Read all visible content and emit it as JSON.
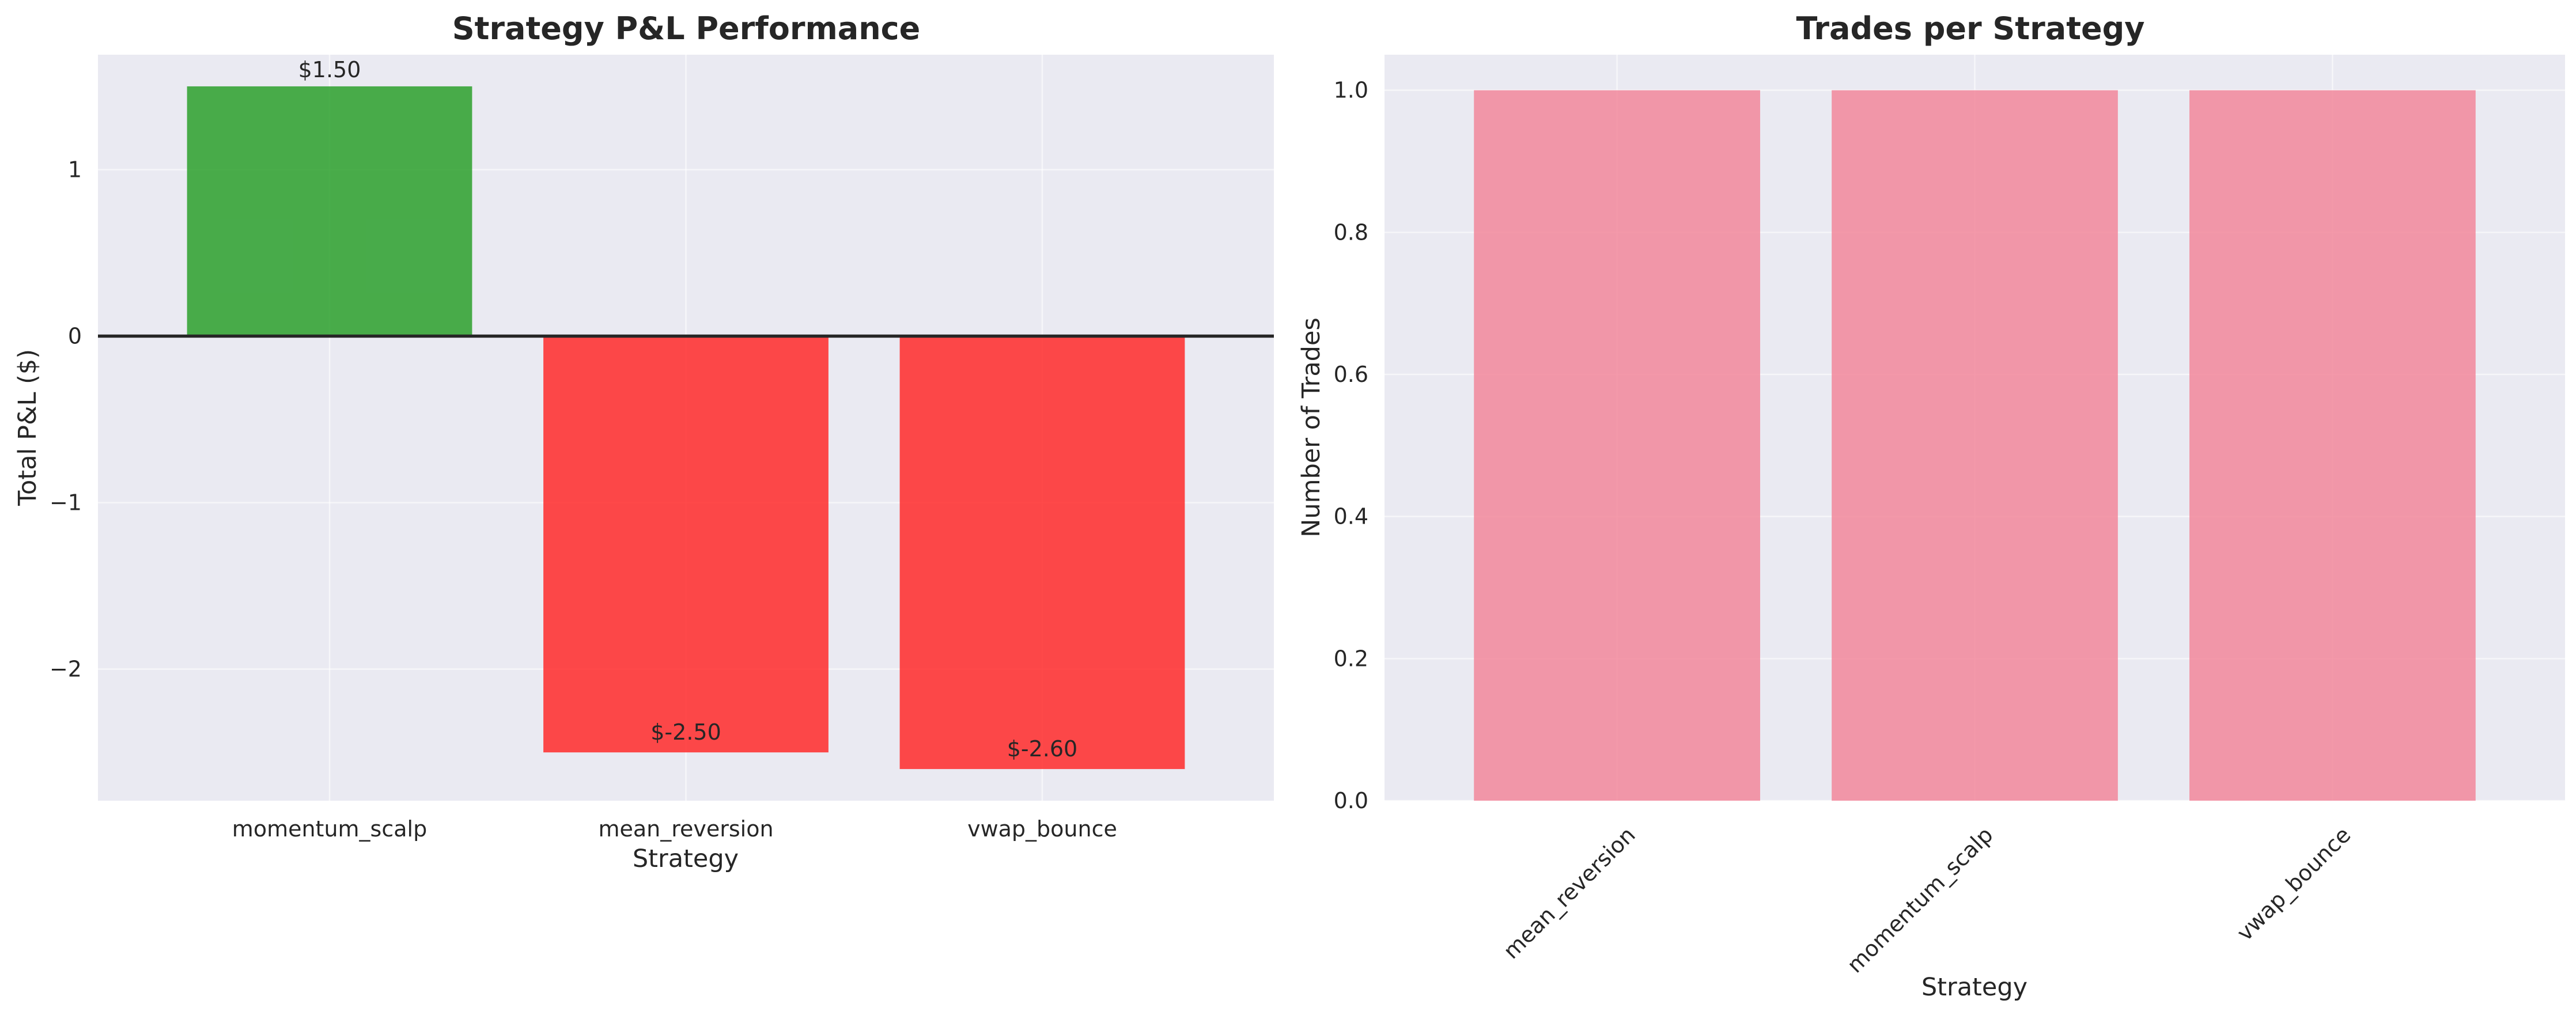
{
  "chart_data": [
    {
      "type": "bar",
      "title": "Strategy P&L Performance",
      "xlabel": "Strategy",
      "ylabel": "Total P&L ($)",
      "categories": [
        "momentum_scalp",
        "mean_reversion",
        "vwap_bounce"
      ],
      "values": [
        1.5,
        -2.5,
        -2.6
      ],
      "data_labels": [
        "$1.50",
        "$-2.50",
        "$-2.60"
      ],
      "bar_colors": [
        "#2ca02c",
        "#ff2a2a",
        "#ff2a2a"
      ],
      "ylim": [
        -2.79,
        1.69
      ],
      "yticks": [
        -2,
        -1,
        0,
        1
      ],
      "ytick_labels": [
        "−2",
        "−1",
        "0",
        "1"
      ],
      "zero_line": true,
      "grid": true
    },
    {
      "type": "bar",
      "title": "Trades per Strategy",
      "xlabel": "Strategy",
      "ylabel": "Number of Trades",
      "categories": [
        "mean_reversion",
        "momentum_scalp",
        "vwap_bounce"
      ],
      "values": [
        1,
        1,
        1
      ],
      "bar_color": "#f2879b",
      "ylim": [
        0,
        1.05
      ],
      "yticks": [
        0,
        0.2,
        0.4,
        0.6,
        0.8,
        1.0
      ],
      "ytick_labels": [
        "0.0",
        "0.2",
        "0.4",
        "0.6",
        "0.8",
        "1.0"
      ],
      "xtick_rotation": 45,
      "grid": true
    }
  ]
}
